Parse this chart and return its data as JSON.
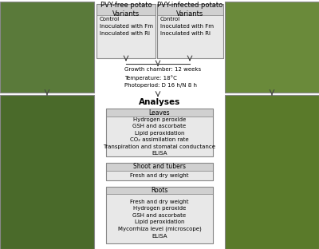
{
  "bg_color": "#ffffff",
  "box_face": "#e8e8e8",
  "box_edge": "#888888",
  "box_header_face": "#d0d0d0",
  "arrow_color": "#444444",
  "left_box1_title": "PVY-free potato\nVariants",
  "left_box1_items": "Control\nInoculated with Fm\nInoculated with Ri",
  "right_box1_title": "PVY-infected potato\nVariants",
  "right_box1_items": "Control\nInoculated with Fm\nInoculated with Ri",
  "growth_text": "Growth chamber: 12 weeks\nTemperature: 18°C\nPhotoperiod: D 16 h/N 8 h",
  "analyses_title": "Analyses",
  "leaves_header": "Leaves",
  "leaves_items": "Hydrogen peroxide\nGSH and ascorbate\nLipid peroxidation\nCO₂ assimilation rate\nTranspiration and stomatal conductance\nELISA",
  "shoot_header": "Shoot and tubers",
  "shoot_items": "Fresh and dry weight",
  "roots_header": "Roots",
  "roots_items": "Fresh and dry weight\nHydrogen peroxide\nGSH and ascorbate\nLipid peroxidation\nMycorrhiza level (microscope)\nELISA",
  "font_size_title": 6.0,
  "font_size_body": 5.0,
  "font_size_analyses": 7.5,
  "font_size_header": 5.5
}
